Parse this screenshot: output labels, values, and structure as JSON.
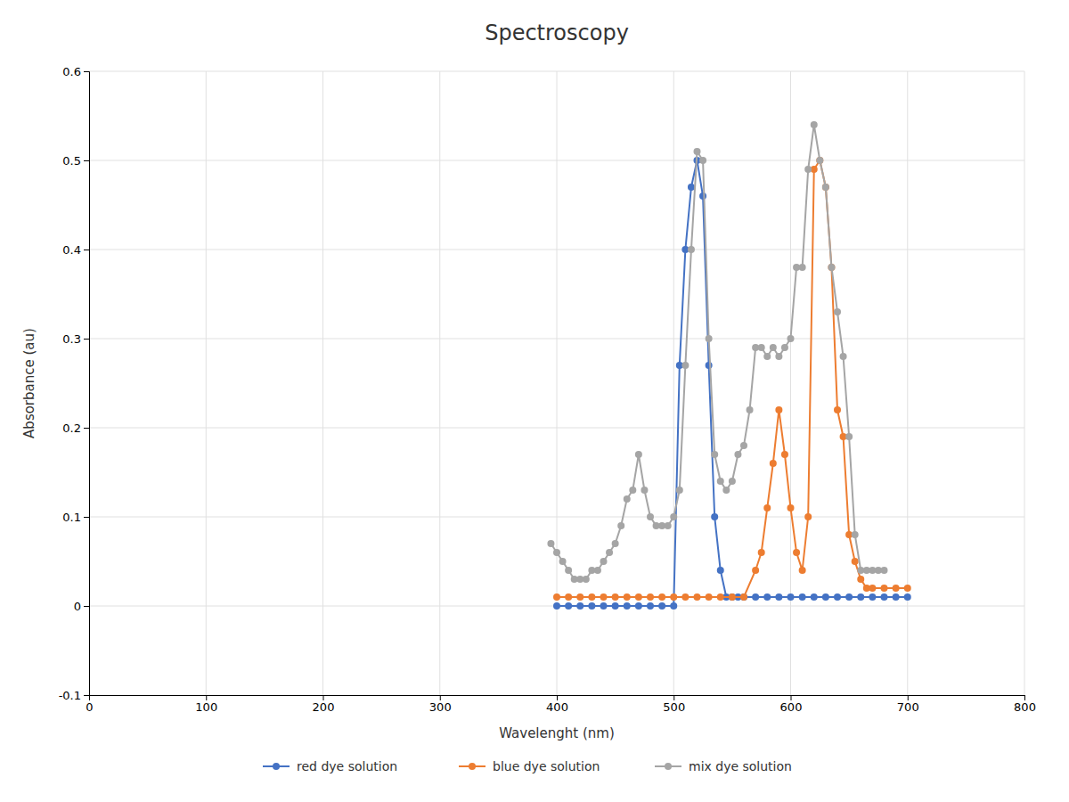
{
  "chart_data": {
    "type": "line",
    "title": "Spectroscopy",
    "x_label": "Wavelenght (nm)",
    "y_label": "Absorbance (au)",
    "xlim": [
      0,
      800
    ],
    "ylim": [
      -0.1,
      0.6
    ],
    "xticks": [
      0,
      100,
      200,
      300,
      400,
      500,
      600,
      700,
      800
    ],
    "yticks": [
      -0.1,
      0,
      0.1,
      0.2,
      0.3,
      0.4,
      0.5,
      0.6
    ],
    "grid": true,
    "legend": "bottom",
    "marker": "circle",
    "series": [
      {
        "name": "red dye solution",
        "color": "#4472C4",
        "x": [
          400,
          410,
          420,
          430,
          440,
          450,
          460,
          470,
          480,
          490,
          500,
          505,
          510,
          515,
          520,
          525,
          530,
          535,
          540,
          545,
          550,
          555,
          560,
          570,
          580,
          590,
          600,
          610,
          620,
          630,
          640,
          650,
          660,
          670,
          680,
          690,
          700
        ],
        "values": [
          0.0,
          0.0,
          0.0,
          0.0,
          0.0,
          0.0,
          0.0,
          0.0,
          0.0,
          0.0,
          0.0,
          0.27,
          0.4,
          0.47,
          0.5,
          0.46,
          0.27,
          0.1,
          0.04,
          0.01,
          0.01,
          0.01,
          0.01,
          0.01,
          0.01,
          0.01,
          0.01,
          0.01,
          0.01,
          0.01,
          0.01,
          0.01,
          0.01,
          0.01,
          0.01,
          0.01,
          0.01
        ]
      },
      {
        "name": "blue dye solution",
        "color": "#ED7D31",
        "x": [
          400,
          410,
          420,
          430,
          440,
          450,
          460,
          470,
          480,
          490,
          500,
          510,
          520,
          530,
          540,
          550,
          560,
          570,
          575,
          580,
          585,
          590,
          595,
          600,
          605,
          610,
          615,
          620,
          625,
          630,
          635,
          640,
          645,
          650,
          655,
          660,
          665,
          670,
          680,
          690,
          700
        ],
        "values": [
          0.01,
          0.01,
          0.01,
          0.01,
          0.01,
          0.01,
          0.01,
          0.01,
          0.01,
          0.01,
          0.01,
          0.01,
          0.01,
          0.01,
          0.01,
          0.01,
          0.01,
          0.04,
          0.06,
          0.11,
          0.16,
          0.22,
          0.17,
          0.11,
          0.06,
          0.04,
          0.1,
          0.49,
          0.5,
          0.47,
          0.38,
          0.22,
          0.19,
          0.08,
          0.05,
          0.03,
          0.02,
          0.02,
          0.02,
          0.02,
          0.02
        ]
      },
      {
        "name": "mix dye solution",
        "color": "#A5A5A5",
        "x": [
          395,
          400,
          405,
          410,
          415,
          420,
          425,
          430,
          435,
          440,
          445,
          450,
          455,
          460,
          465,
          470,
          475,
          480,
          485,
          490,
          495,
          500,
          505,
          510,
          515,
          520,
          525,
          530,
          535,
          540,
          545,
          550,
          555,
          560,
          565,
          570,
          575,
          580,
          585,
          590,
          595,
          600,
          605,
          610,
          615,
          620,
          625,
          630,
          635,
          640,
          645,
          650,
          655,
          660,
          665,
          670,
          675,
          680
        ],
        "values": [
          0.07,
          0.06,
          0.05,
          0.04,
          0.03,
          0.03,
          0.03,
          0.04,
          0.04,
          0.05,
          0.06,
          0.07,
          0.09,
          0.12,
          0.13,
          0.17,
          0.13,
          0.1,
          0.09,
          0.09,
          0.09,
          0.1,
          0.13,
          0.27,
          0.4,
          0.51,
          0.5,
          0.3,
          0.17,
          0.14,
          0.13,
          0.14,
          0.17,
          0.18,
          0.22,
          0.29,
          0.29,
          0.28,
          0.29,
          0.28,
          0.29,
          0.3,
          0.38,
          0.38,
          0.49,
          0.54,
          0.5,
          0.47,
          0.38,
          0.33,
          0.28,
          0.19,
          0.08,
          0.04,
          0.04,
          0.04,
          0.04,
          0.04
        ]
      }
    ]
  }
}
